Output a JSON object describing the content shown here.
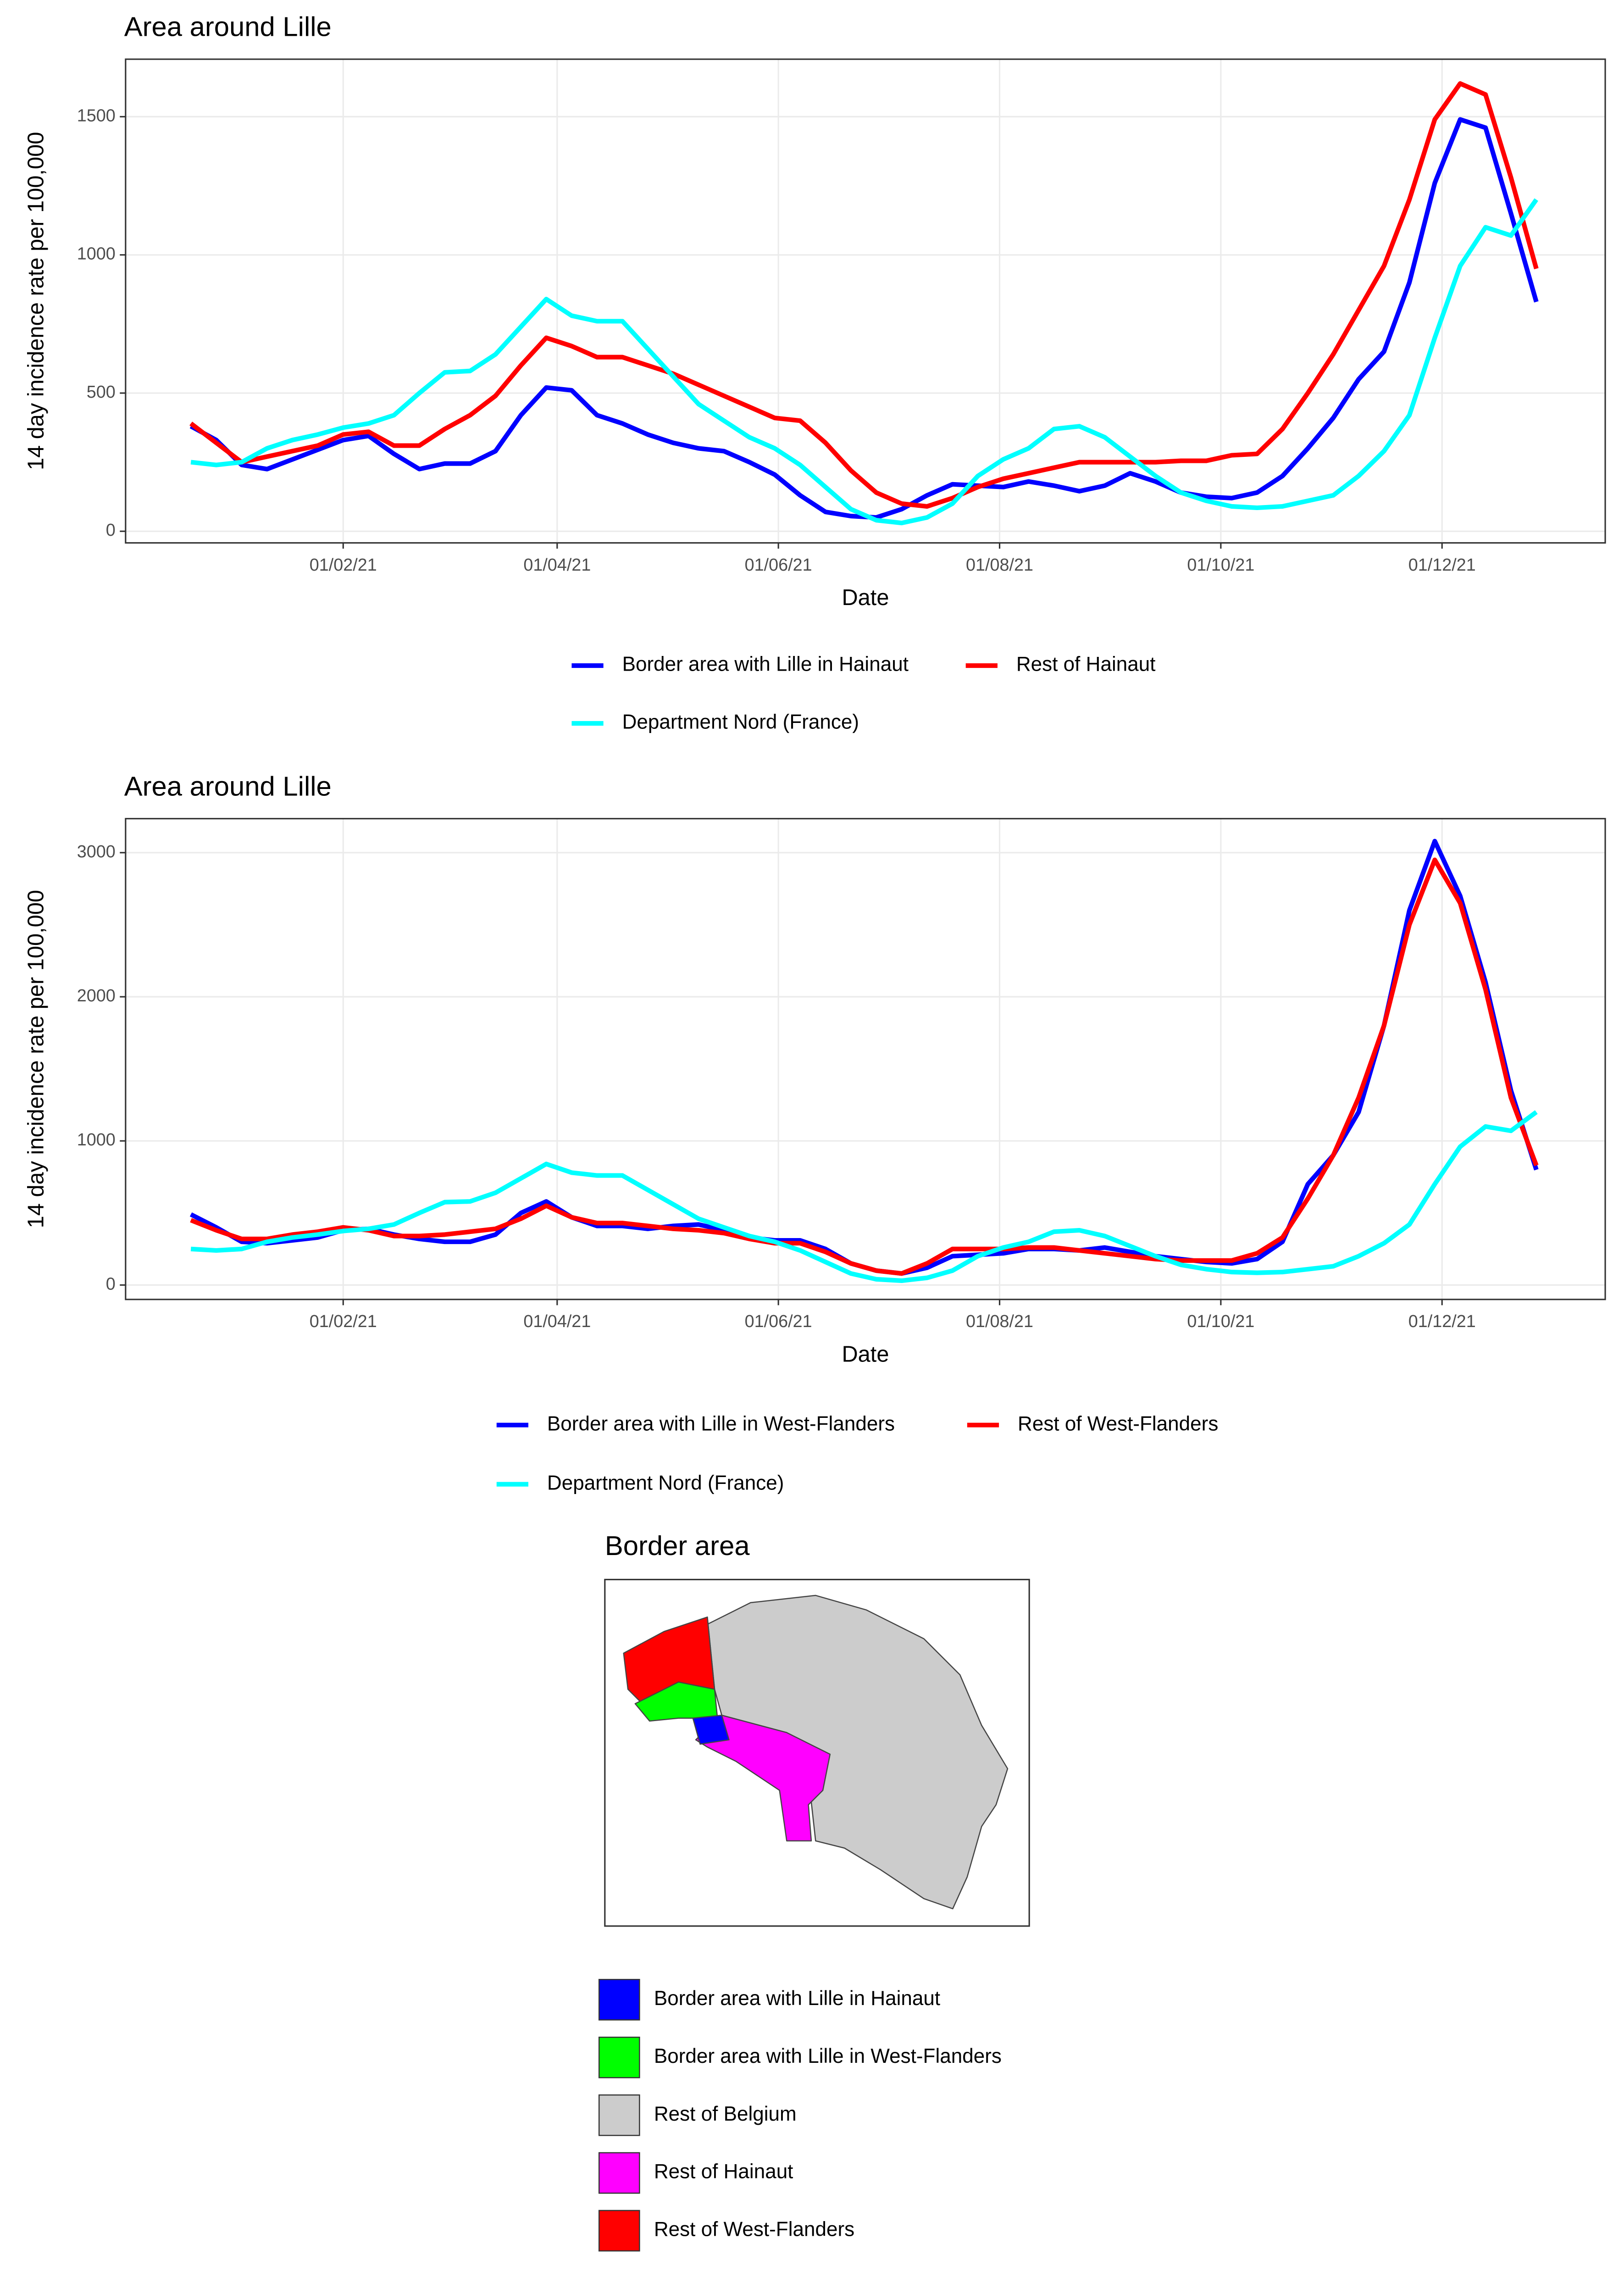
{
  "chart_data": [
    {
      "type": "line",
      "title": "Area around Lille",
      "x_label": "Date",
      "y_label": "14 day incidence rate per 100,000",
      "x": [
        "2020-12-21",
        "2020-12-28",
        "2021-01-04",
        "2021-01-11",
        "2021-01-18",
        "2021-01-25",
        "2021-02-01",
        "2021-02-08",
        "2021-02-15",
        "2021-02-22",
        "2021-03-01",
        "2021-03-08",
        "2021-03-15",
        "2021-03-22",
        "2021-03-29",
        "2021-04-05",
        "2021-04-12",
        "2021-04-19",
        "2021-04-26",
        "2021-05-03",
        "2021-05-10",
        "2021-05-17",
        "2021-05-24",
        "2021-05-31",
        "2021-06-07",
        "2021-06-14",
        "2021-06-21",
        "2021-06-28",
        "2021-07-05",
        "2021-07-12",
        "2021-07-19",
        "2021-07-26",
        "2021-08-02",
        "2021-08-09",
        "2021-08-16",
        "2021-08-23",
        "2021-08-30",
        "2021-09-06",
        "2021-09-13",
        "2021-09-20",
        "2021-09-27",
        "2021-10-04",
        "2021-10-11",
        "2021-10-18",
        "2021-10-25",
        "2021-11-01",
        "2021-11-08",
        "2021-11-15",
        "2021-11-22",
        "2021-11-29",
        "2021-12-06",
        "2021-12-13",
        "2021-12-20",
        "2021-12-27"
      ],
      "xlim": [
        "2020-12-03",
        "2022-01-15"
      ],
      "xticks": [
        {
          "value": "2021-02-01",
          "label": "01/02/21"
        },
        {
          "value": "2021-04-01",
          "label": "01/04/21"
        },
        {
          "value": "2021-06-01",
          "label": "01/06/21"
        },
        {
          "value": "2021-08-01",
          "label": "01/08/21"
        },
        {
          "value": "2021-10-01",
          "label": "01/10/21"
        },
        {
          "value": "2021-12-01",
          "label": "01/12/21"
        }
      ],
      "ylim": [
        -42,
        1708
      ],
      "yticks": [
        0,
        500,
        1000,
        1500
      ],
      "grid": true,
      "legend": "bottom",
      "series": [
        {
          "name": "Border area with Lille in Hainaut",
          "color": "#0000ff",
          "values": [
            380,
            330,
            240,
            225,
            260,
            295,
            330,
            345,
            280,
            225,
            245,
            245,
            290,
            420,
            520,
            510,
            420,
            390,
            350,
            320,
            300,
            290,
            250,
            205,
            130,
            70,
            55,
            50,
            80,
            130,
            170,
            165,
            160,
            180,
            165,
            145,
            165,
            210,
            180,
            140,
            125,
            120,
            140,
            200,
            300,
            410,
            550,
            650,
            900,
            1260,
            1490,
            1460,
            1150,
            830
          ]
        },
        {
          "name": "Rest of Hainaut",
          "color": "#ff0000",
          "values": [
            390,
            320,
            250,
            270,
            290,
            310,
            350,
            360,
            310,
            310,
            370,
            420,
            490,
            600,
            700,
            670,
            630,
            630,
            600,
            570,
            530,
            490,
            450,
            410,
            400,
            320,
            220,
            140,
            100,
            90,
            120,
            160,
            190,
            210,
            230,
            250,
            250,
            250,
            250,
            255,
            255,
            275,
            280,
            370,
            500,
            640,
            800,
            960,
            1200,
            1490,
            1620,
            1580,
            1280,
            950
          ]
        },
        {
          "name": "Department Nord (France)",
          "color": "#00ffff",
          "values": [
            250,
            240,
            250,
            300,
            330,
            350,
            375,
            390,
            420,
            500,
            575,
            580,
            640,
            740,
            840,
            780,
            760,
            760,
            660,
            560,
            460,
            400,
            340,
            300,
            240,
            160,
            80,
            40,
            30,
            50,
            100,
            200,
            260,
            300,
            370,
            380,
            340,
            270,
            200,
            140,
            110,
            90,
            85,
            90,
            110,
            130,
            200,
            290,
            420,
            700,
            960,
            1100,
            1070,
            1200
          ]
        }
      ]
    },
    {
      "type": "line",
      "title": "Area around Lille",
      "x_label": "Date",
      "y_label": "14 day incidence rate per 100,000",
      "x": [
        "2020-12-21",
        "2020-12-28",
        "2021-01-04",
        "2021-01-11",
        "2021-01-18",
        "2021-01-25",
        "2021-02-01",
        "2021-02-08",
        "2021-02-15",
        "2021-02-22",
        "2021-03-01",
        "2021-03-08",
        "2021-03-15",
        "2021-03-22",
        "2021-03-29",
        "2021-04-05",
        "2021-04-12",
        "2021-04-19",
        "2021-04-26",
        "2021-05-03",
        "2021-05-10",
        "2021-05-17",
        "2021-05-24",
        "2021-05-31",
        "2021-06-07",
        "2021-06-14",
        "2021-06-21",
        "2021-06-28",
        "2021-07-05",
        "2021-07-12",
        "2021-07-19",
        "2021-07-26",
        "2021-08-02",
        "2021-08-09",
        "2021-08-16",
        "2021-08-23",
        "2021-08-30",
        "2021-09-06",
        "2021-09-13",
        "2021-09-20",
        "2021-09-27",
        "2021-10-04",
        "2021-10-11",
        "2021-10-18",
        "2021-10-25",
        "2021-11-01",
        "2021-11-08",
        "2021-11-15",
        "2021-11-22",
        "2021-11-29",
        "2021-12-06",
        "2021-12-13",
        "2021-12-20",
        "2021-12-27"
      ],
      "xlim": [
        "2020-12-03",
        "2022-01-15"
      ],
      "xticks": [
        {
          "value": "2021-02-01",
          "label": "01/02/21"
        },
        {
          "value": "2021-04-01",
          "label": "01/04/21"
        },
        {
          "value": "2021-06-01",
          "label": "01/06/21"
        },
        {
          "value": "2021-08-01",
          "label": "01/08/21"
        },
        {
          "value": "2021-10-01",
          "label": "01/10/21"
        },
        {
          "value": "2021-12-01",
          "label": "01/12/21"
        }
      ],
      "ylim": [
        -100,
        3236
      ],
      "yticks": [
        0,
        1000,
        2000,
        3000
      ],
      "grid": true,
      "legend": "bottom",
      "series": [
        {
          "name": "Border area with Lille in West-Flanders",
          "color": "#0000ff",
          "values": [
            490,
            400,
            300,
            290,
            310,
            330,
            380,
            390,
            350,
            320,
            300,
            300,
            350,
            500,
            580,
            470,
            410,
            410,
            390,
            410,
            420,
            380,
            330,
            310,
            310,
            250,
            150,
            100,
            80,
            120,
            200,
            210,
            220,
            250,
            250,
            240,
            260,
            230,
            200,
            180,
            160,
            150,
            180,
            300,
            700,
            900,
            1200,
            1800,
            2600,
            3080,
            2700,
            2100,
            1350,
            800
          ]
        },
        {
          "name": "Rest of West-Flanders",
          "color": "#ff0000",
          "values": [
            450,
            380,
            320,
            320,
            350,
            370,
            400,
            380,
            340,
            340,
            350,
            370,
            390,
            460,
            550,
            470,
            430,
            430,
            410,
            390,
            380,
            360,
            320,
            290,
            290,
            230,
            150,
            100,
            80,
            150,
            250,
            250,
            250,
            260,
            260,
            240,
            220,
            200,
            180,
            170,
            170,
            170,
            220,
            330,
            600,
            900,
            1300,
            1800,
            2500,
            2950,
            2650,
            2050,
            1300,
            830
          ]
        },
        {
          "name": "Department Nord (France)",
          "color": "#00ffff",
          "values": [
            250,
            240,
            250,
            300,
            330,
            350,
            375,
            390,
            420,
            500,
            575,
            580,
            640,
            740,
            840,
            780,
            760,
            760,
            660,
            560,
            460,
            400,
            340,
            300,
            240,
            160,
            80,
            40,
            30,
            50,
            100,
            200,
            260,
            300,
            370,
            380,
            340,
            270,
            200,
            140,
            110,
            90,
            85,
            90,
            110,
            130,
            200,
            290,
            420,
            700,
            960,
            1100,
            1070,
            1200
          ]
        }
      ]
    }
  ],
  "map": {
    "title": "Border area",
    "legend": [
      {
        "name": "Border area with Lille in Hainaut",
        "color": "#0000ff"
      },
      {
        "name": "Border area with Lille in West-Flanders",
        "color": "#00ff00"
      },
      {
        "name": "Rest of Belgium",
        "color": "#cccccc"
      },
      {
        "name": "Rest of Hainaut",
        "color": "#ff00ff"
      },
      {
        "name": "Rest of West-Flanders",
        "color": "#ff0000"
      }
    ]
  }
}
